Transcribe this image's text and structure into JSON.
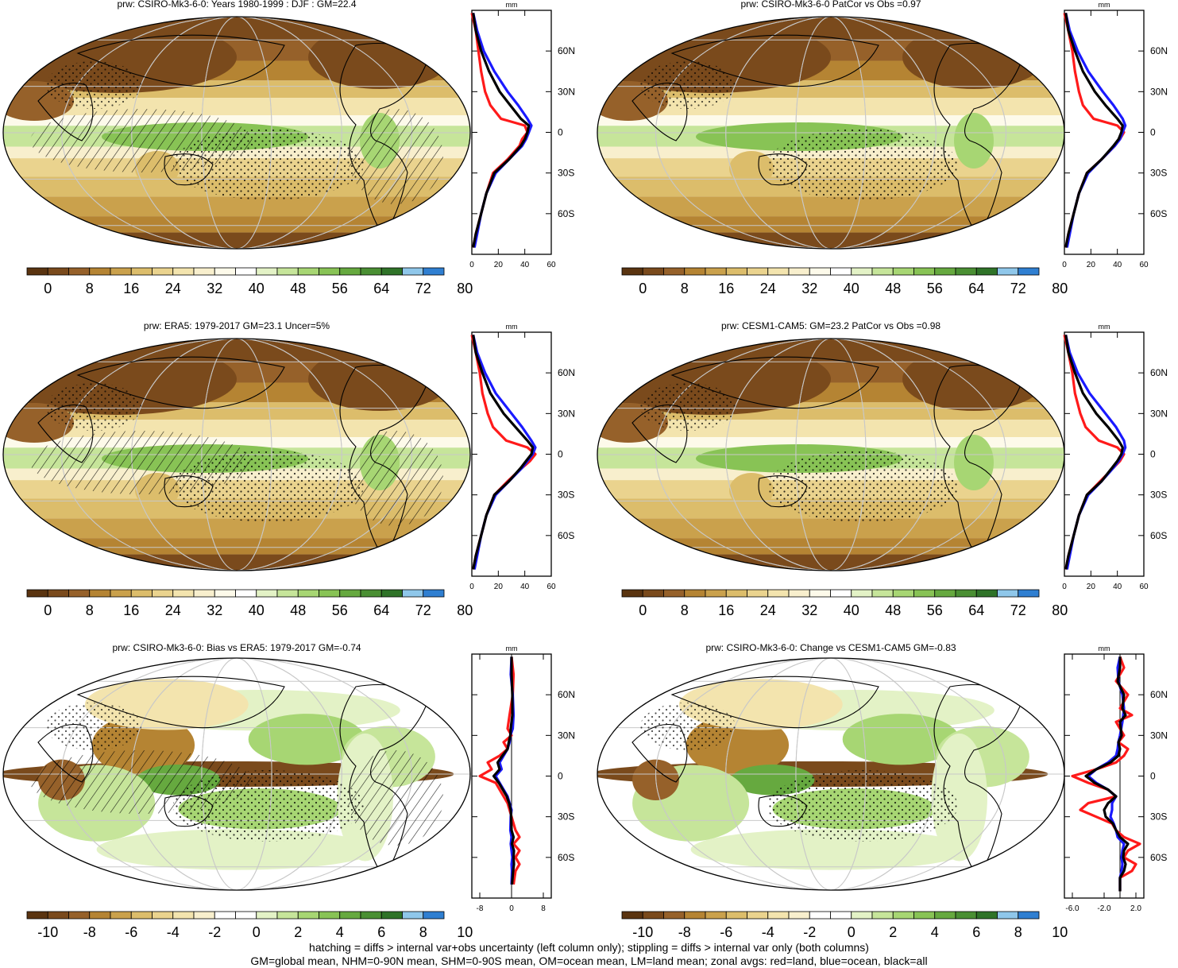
{
  "colors": {
    "precip_palette": [
      "#5a3410",
      "#7a4a1c",
      "#96612a",
      "#b58433",
      "#caa14c",
      "#dcbd6b",
      "#ead38e",
      "#f3e4ae",
      "#f8efcd",
      "#fdfaea",
      "#ffffff",
      "#e3f2c6",
      "#c6e59a",
      "#a7d673",
      "#88c355",
      "#66a93f",
      "#4a8f33",
      "#2f7328",
      "#8fc7ea",
      "#2f7fd1"
    ],
    "diff_palette": [
      "#5a3410",
      "#7a4a1c",
      "#96612a",
      "#b58433",
      "#caa14c",
      "#dcbd6b",
      "#ead38e",
      "#f3e4ae",
      "#f8efcd",
      "#ffffff",
      "#ffffff",
      "#e3f2c6",
      "#c6e59a",
      "#a7d673",
      "#88c355",
      "#66a93f",
      "#4a8f33",
      "#2f7328",
      "#8fc7ea",
      "#2f7fd1"
    ],
    "land_line": "#ff1a1a",
    "ocean_line": "#1a1aff",
    "all_line": "#000000"
  },
  "panels": [
    {
      "title": "prw: CSIRO-Mk3-6-0: Years 1980-1999 : DJF : GM=22.4",
      "kind": "precip",
      "hatching": true,
      "colorbar_labels": [
        "0",
        "8",
        "16",
        "24",
        "32",
        "40",
        "48",
        "56",
        "64",
        "72",
        "80"
      ]
    },
    {
      "title": "prw: CSIRO-Mk3-6-0 PatCor vs Obs =0.97",
      "kind": "precip",
      "hatching": false,
      "colorbar_labels": [
        "0",
        "8",
        "16",
        "24",
        "32",
        "40",
        "48",
        "56",
        "64",
        "72",
        "80"
      ]
    },
    {
      "title": "prw: ERA5: 1979-2017 GM=23.1 Uncer=5%",
      "kind": "precip",
      "hatching": true,
      "colorbar_labels": [
        "0",
        "8",
        "16",
        "24",
        "32",
        "40",
        "48",
        "56",
        "64",
        "72",
        "80"
      ]
    },
    {
      "title": "prw: CESM1-CAM5: GM=23.2 PatCor vs Obs =0.98",
      "kind": "precip",
      "hatching": false,
      "colorbar_labels": [
        "0",
        "8",
        "16",
        "24",
        "32",
        "40",
        "48",
        "56",
        "64",
        "72",
        "80"
      ]
    },
    {
      "title": "prw: CSIRO-Mk3-6-0: Bias vs ERA5: 1979-2017 GM=-0.74",
      "kind": "diff",
      "hatching": true,
      "colorbar_labels": [
        "-10",
        "-8",
        "-6",
        "-4",
        "-2",
        "0",
        "2",
        "4",
        "6",
        "8",
        "10"
      ]
    },
    {
      "title": "prw: CSIRO-Mk3-6-0: Change vs CESM1-CAM5 GM=-0.83",
      "kind": "diff",
      "hatching": false,
      "colorbar_labels": [
        "-10",
        "-8",
        "-6",
        "-4",
        "-2",
        "0",
        "2",
        "4",
        "6",
        "8",
        "10"
      ]
    }
  ],
  "chart_data": [
    {
      "type": "line",
      "title": "",
      "xlabel": "mm",
      "x_ticks": [
        "0",
        "20",
        "40",
        "60"
      ],
      "xlim": [
        0,
        60
      ],
      "y_ticks": [
        "60N",
        "30N",
        "0",
        "30S",
        "60S"
      ],
      "ylim": [
        -90,
        90
      ],
      "series": [
        {
          "color": "#ff1a1a",
          "lat": [
            88,
            75,
            60,
            45,
            30,
            20,
            10,
            5,
            0,
            -5,
            -10,
            -20,
            -30,
            -45,
            -60,
            -75,
            -85
          ],
          "values": [
            0,
            3,
            5,
            7,
            10,
            14,
            22,
            40,
            42,
            38,
            36,
            27,
            16,
            11,
            7,
            3,
            1
          ]
        },
        {
          "color": "#1a1aff",
          "lat": [
            88,
            75,
            60,
            45,
            30,
            20,
            10,
            5,
            0,
            -5,
            -10,
            -20,
            -30,
            -45,
            -60,
            -75,
            -85
          ],
          "values": [
            1,
            4,
            9,
            17,
            27,
            35,
            42,
            45,
            43,
            41,
            38,
            28,
            18,
            11,
            7,
            4,
            2
          ]
        },
        {
          "color": "#000000",
          "lat": [
            88,
            75,
            60,
            45,
            30,
            20,
            10,
            5,
            0,
            -5,
            -10,
            -20,
            -30,
            -45,
            -60,
            -75,
            -85
          ],
          "values": [
            1,
            3,
            7,
            13,
            21,
            29,
            37,
            43,
            42,
            40,
            37,
            28,
            17,
            11,
            7,
            3,
            1
          ]
        }
      ]
    },
    {
      "type": "line",
      "title": "",
      "xlabel": "mm",
      "x_ticks": [
        "0",
        "20",
        "40",
        "60"
      ],
      "xlim": [
        0,
        60
      ],
      "y_ticks": [
        "60N",
        "30N",
        "0",
        "30S",
        "60S"
      ],
      "ylim": [
        -90,
        90
      ],
      "series": [
        {
          "color": "#ff1a1a",
          "lat": [
            88,
            75,
            60,
            45,
            30,
            20,
            10,
            5,
            0,
            -5,
            -10,
            -20,
            -30,
            -45,
            -60,
            -75,
            -85
          ],
          "values": [
            0,
            3,
            6,
            8,
            11,
            14,
            22,
            40,
            45,
            42,
            38,
            28,
            17,
            11,
            7,
            3,
            1
          ]
        },
        {
          "color": "#1a1aff",
          "lat": [
            88,
            75,
            60,
            45,
            30,
            20,
            10,
            5,
            0,
            -5,
            -10,
            -20,
            -30,
            -45,
            -60,
            -75,
            -85
          ],
          "values": [
            1,
            4,
            10,
            18,
            29,
            37,
            44,
            46,
            44,
            42,
            38,
            28,
            18,
            11,
            7,
            4,
            2
          ]
        },
        {
          "color": "#000000",
          "lat": [
            88,
            75,
            60,
            45,
            30,
            20,
            10,
            5,
            0,
            -5,
            -10,
            -20,
            -30,
            -45,
            -60,
            -75,
            -85
          ],
          "values": [
            1,
            3,
            8,
            14,
            23,
            31,
            40,
            44,
            43,
            41,
            37,
            28,
            17,
            11,
            7,
            3,
            1
          ]
        }
      ]
    },
    {
      "type": "line",
      "title": "",
      "xlabel": "mm",
      "x_ticks": [
        "0",
        "20",
        "40",
        "60"
      ],
      "xlim": [
        0,
        60
      ],
      "y_ticks": [
        "60N",
        "30N",
        "0",
        "30S",
        "60S"
      ],
      "ylim": [
        -90,
        90
      ],
      "series": [
        {
          "color": "#ff1a1a",
          "lat": [
            88,
            75,
            60,
            45,
            30,
            20,
            10,
            5,
            0,
            -5,
            -10,
            -20,
            -30,
            -45,
            -60,
            -75,
            -85
          ],
          "values": [
            0,
            3,
            6,
            8,
            12,
            16,
            26,
            42,
            48,
            44,
            38,
            27,
            17,
            11,
            7,
            3,
            1
          ]
        },
        {
          "color": "#1a1aff",
          "lat": [
            88,
            75,
            60,
            45,
            30,
            20,
            10,
            5,
            0,
            -5,
            -10,
            -20,
            -30,
            -45,
            -60,
            -75,
            -85
          ],
          "values": [
            1,
            4,
            10,
            18,
            30,
            38,
            45,
            48,
            46,
            42,
            38,
            28,
            18,
            11,
            7,
            4,
            2
          ]
        },
        {
          "color": "#000000",
          "lat": [
            88,
            75,
            60,
            45,
            30,
            20,
            10,
            5,
            0,
            -5,
            -10,
            -20,
            -30,
            -45,
            -60,
            -75,
            -85
          ],
          "values": [
            1,
            3,
            8,
            14,
            24,
            33,
            42,
            46,
            45,
            41,
            37,
            28,
            17,
            11,
            7,
            3,
            1
          ]
        }
      ]
    },
    {
      "type": "line",
      "title": "",
      "xlabel": "mm",
      "x_ticks": [
        "0",
        "20",
        "40",
        "60"
      ],
      "xlim": [
        0,
        60
      ],
      "y_ticks": [
        "60N",
        "30N",
        "0",
        "30S",
        "60S"
      ],
      "ylim": [
        -90,
        90
      ],
      "series": [
        {
          "color": "#ff1a1a",
          "lat": [
            88,
            75,
            60,
            45,
            30,
            20,
            10,
            5,
            0,
            -5,
            -10,
            -20,
            -30,
            -45,
            -60,
            -75,
            -85
          ],
          "values": [
            0,
            3,
            6,
            8,
            12,
            16,
            26,
            40,
            45,
            42,
            37,
            27,
            17,
            11,
            7,
            3,
            1
          ]
        },
        {
          "color": "#1a1aff",
          "lat": [
            88,
            75,
            60,
            45,
            30,
            20,
            10,
            5,
            0,
            -5,
            -10,
            -20,
            -30,
            -45,
            -60,
            -75,
            -85
          ],
          "values": [
            1,
            4,
            10,
            19,
            31,
            39,
            45,
            46,
            44,
            41,
            37,
            28,
            18,
            11,
            7,
            4,
            2
          ]
        },
        {
          "color": "#000000",
          "lat": [
            88,
            75,
            60,
            45,
            30,
            20,
            10,
            5,
            0,
            -5,
            -10,
            -20,
            -30,
            -45,
            -60,
            -75,
            -85
          ],
          "values": [
            1,
            3,
            8,
            14,
            24,
            33,
            41,
            44,
            43,
            40,
            36,
            28,
            17,
            11,
            7,
            3,
            1
          ]
        }
      ]
    },
    {
      "type": "line",
      "title": "",
      "xlabel": "mm",
      "x_ticks": [
        "-8",
        "0",
        "8"
      ],
      "xlim": [
        -10,
        10
      ],
      "y_ticks": [
        "60N",
        "30N",
        "0",
        "30S",
        "60S"
      ],
      "ylim": [
        -90,
        90
      ],
      "series": [
        {
          "color": "#ff1a1a",
          "lat": [
            88,
            75,
            60,
            45,
            35,
            30,
            25,
            20,
            15,
            10,
            5,
            0,
            -5,
            -10,
            -15,
            -20,
            -25,
            -30,
            -40,
            -45,
            -50,
            -55,
            -60,
            -65,
            -70,
            -80
          ],
          "values": [
            0,
            0.5,
            0.3,
            -0.5,
            -1,
            0,
            -2,
            -1,
            -3,
            -6,
            -5,
            -8,
            -4,
            -3,
            -2,
            -1,
            -0.5,
            0,
            1,
            2,
            0.5,
            2,
            1,
            2,
            1,
            0.5
          ]
        },
        {
          "color": "#1a1aff",
          "lat": [
            88,
            75,
            60,
            45,
            35,
            30,
            25,
            20,
            15,
            10,
            5,
            0,
            -5,
            -10,
            -15,
            -20,
            -25,
            -30,
            -40,
            -45,
            -50,
            -55,
            -60,
            -65,
            -70,
            -80
          ],
          "values": [
            0,
            -0.2,
            0.3,
            0.5,
            0.3,
            -0.3,
            -0.5,
            -1,
            -2,
            -3,
            -2.5,
            -4,
            -3,
            -2,
            -1,
            -0.5,
            0,
            -0.2,
            -0.3,
            0,
            -0.2,
            0,
            0.2,
            0,
            0.1,
            0
          ]
        },
        {
          "color": "#000000",
          "lat": [
            88,
            75,
            60,
            45,
            35,
            30,
            25,
            20,
            15,
            10,
            5,
            0,
            -5,
            -10,
            -15,
            -20,
            -25,
            -30,
            -40,
            -45,
            -50,
            -55,
            -60,
            -65,
            -70,
            -80
          ],
          "values": [
            0,
            0,
            0.2,
            0.2,
            -0.2,
            -0.3,
            -0.7,
            -1,
            -2.3,
            -3.5,
            -3,
            -4.5,
            -3.2,
            -2.2,
            -1.2,
            -0.6,
            -0.2,
            -0.1,
            0,
            0.5,
            0.1,
            0.6,
            0.5,
            0.6,
            0.4,
            0.1
          ]
        }
      ]
    },
    {
      "type": "line",
      "title": "",
      "xlabel": "mm",
      "x_ticks": [
        "-6.0",
        "-2.0",
        "2.0"
      ],
      "xlim": [
        -7,
        3
      ],
      "y_ticks": [
        "60N",
        "30N",
        "0",
        "30S",
        "60S"
      ],
      "ylim": [
        -90,
        90
      ],
      "series": [
        {
          "color": "#ff1a1a",
          "lat": [
            88,
            80,
            70,
            60,
            50,
            45,
            40,
            30,
            25,
            20,
            15,
            10,
            5,
            0,
            -5,
            -10,
            -15,
            -20,
            -25,
            -30,
            -35,
            -40,
            -45,
            -50,
            -55,
            -60,
            -65,
            -70,
            -75,
            -85
          ],
          "values": [
            0,
            0.5,
            -0.5,
            1,
            0,
            1.5,
            -0.5,
            0.5,
            -0.2,
            1,
            0.5,
            -0.5,
            -3,
            -6,
            -4,
            -1.5,
            -0.5,
            -4,
            -5,
            -3,
            -1,
            -0.5,
            0.5,
            2.5,
            1,
            0.5,
            2,
            1.5,
            0,
            0
          ]
        },
        {
          "color": "#1a1aff",
          "lat": [
            88,
            80,
            70,
            60,
            50,
            45,
            40,
            30,
            25,
            20,
            15,
            10,
            5,
            0,
            -5,
            -10,
            -15,
            -20,
            -25,
            -30,
            -35,
            -40,
            -45,
            -50,
            -55,
            -60,
            -65,
            -70,
            -75,
            -85
          ],
          "values": [
            0,
            -0.3,
            -0.2,
            0.3,
            0.5,
            0.4,
            0.3,
            0,
            -0.2,
            -0.3,
            -0.5,
            -1.5,
            -3,
            -4,
            -3,
            -1.5,
            -0.5,
            -1,
            -1,
            -1.2,
            -0.8,
            -0.5,
            -0.3,
            0.5,
            0.3,
            0.2,
            0.3,
            0.2,
            0,
            0
          ]
        },
        {
          "color": "#000000",
          "lat": [
            88,
            80,
            70,
            60,
            50,
            45,
            40,
            30,
            25,
            20,
            15,
            10,
            5,
            0,
            -5,
            -10,
            -15,
            -20,
            -25,
            -30,
            -35,
            -40,
            -45,
            -50,
            -55,
            -60,
            -65,
            -70,
            -75,
            -85
          ],
          "values": [
            0,
            0,
            -0.3,
            0.5,
            0.3,
            0.7,
            0,
            0.2,
            -0.2,
            0,
            -0.2,
            -1.2,
            -3,
            -4.3,
            -3.2,
            -1.5,
            -0.5,
            -1.5,
            -2,
            -1.8,
            -0.9,
            -0.5,
            0,
            1,
            0.5,
            0.4,
            0.7,
            0.5,
            0,
            0
          ]
        }
      ]
    }
  ],
  "footer": {
    "line1": "hatching = diffs > internal var+obs uncertainty (left column only); stippling = diffs > internal var only (both columns)",
    "line2": "GM=global mean, NHM=0-90N mean, SHM=0-90S mean, OM=ocean mean, LM=land mean; zonal avgs: red=land, blue=ocean, black=all"
  }
}
